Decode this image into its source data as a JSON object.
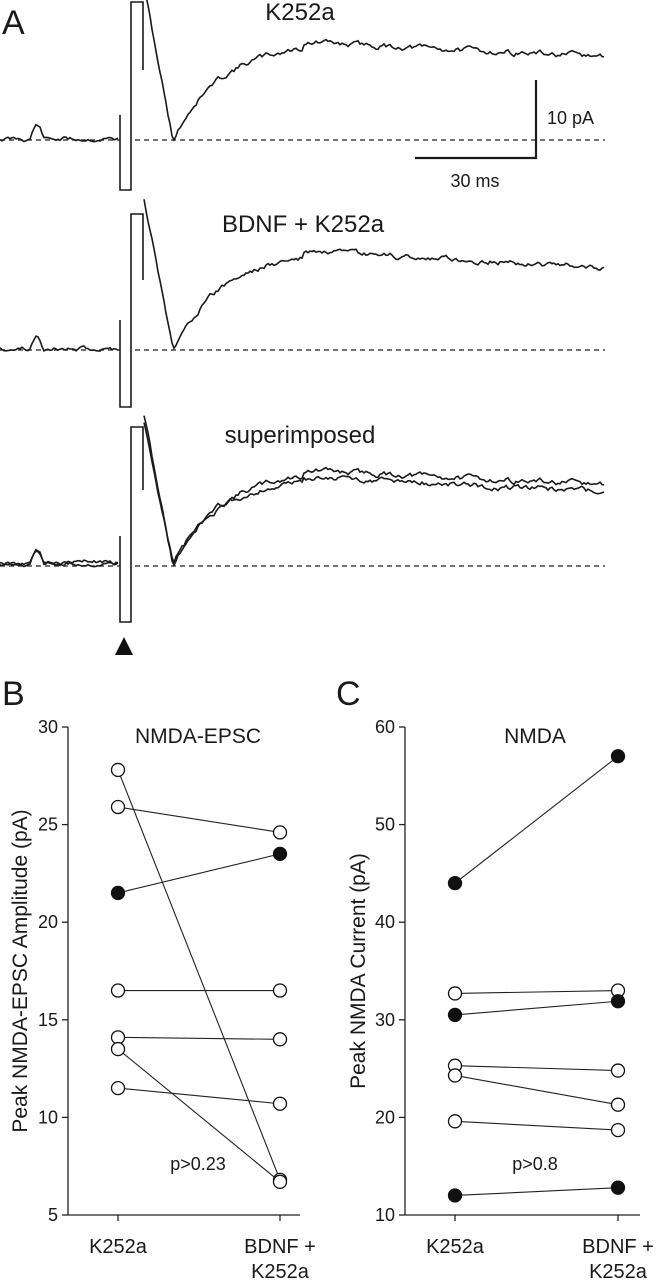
{
  "panels": {
    "a": {
      "letter": "A",
      "traces": [
        {
          "title": "K252a"
        },
        {
          "title": "BDNF + K252a"
        },
        {
          "title": "superimposed"
        }
      ],
      "scale_bar": {
        "y_label": "10 pA",
        "x_label": "30 ms"
      },
      "stimulus_marker": "triangle-up-icon"
    },
    "b": {
      "letter": "B"
    },
    "c": {
      "letter": "C"
    }
  },
  "chart_data": [
    {
      "type": "scatter",
      "title": "NMDA-EPSC",
      "ylabel": "Peak NMDA-EPSC Amplitude (pA)",
      "xlabel": "",
      "categories": [
        "K252a",
        "BDNF +\nK252a"
      ],
      "ylim": [
        5,
        30
      ],
      "yticks": [
        5,
        10,
        15,
        20,
        25,
        30
      ],
      "annotation": "p>0.23",
      "pairs": [
        {
          "values": [
            27.8,
            6.8
          ],
          "filled": false
        },
        {
          "values": [
            25.9,
            24.6
          ],
          "filled": false
        },
        {
          "values": [
            21.5,
            23.5
          ],
          "filled": true
        },
        {
          "values": [
            16.5,
            16.5
          ],
          "filled": false
        },
        {
          "values": [
            14.1,
            14.0
          ],
          "filled": false
        },
        {
          "values": [
            13.5,
            6.7
          ],
          "filled": false
        },
        {
          "values": [
            11.5,
            10.7
          ],
          "filled": false
        }
      ]
    },
    {
      "type": "scatter",
      "title": "NMDA",
      "ylabel": "Peak NMDA Current (pA)",
      "xlabel": "",
      "categories": [
        "K252a",
        "BDNF +\nK252a"
      ],
      "ylim": [
        10,
        60
      ],
      "yticks": [
        10,
        20,
        30,
        40,
        50,
        60
      ],
      "annotation": "p>0.8",
      "pairs": [
        {
          "values": [
            44.0,
            57.0
          ],
          "filled": true
        },
        {
          "values": [
            32.7,
            33.0
          ],
          "filled": false
        },
        {
          "values": [
            30.5,
            31.9
          ],
          "filled": true
        },
        {
          "values": [
            25.3,
            24.8
          ],
          "filled": false
        },
        {
          "values": [
            24.3,
            21.3
          ],
          "filled": false
        },
        {
          "values": [
            19.6,
            18.7
          ],
          "filled": false
        },
        {
          "values": [
            12.0,
            12.8
          ],
          "filled": true
        }
      ]
    }
  ]
}
